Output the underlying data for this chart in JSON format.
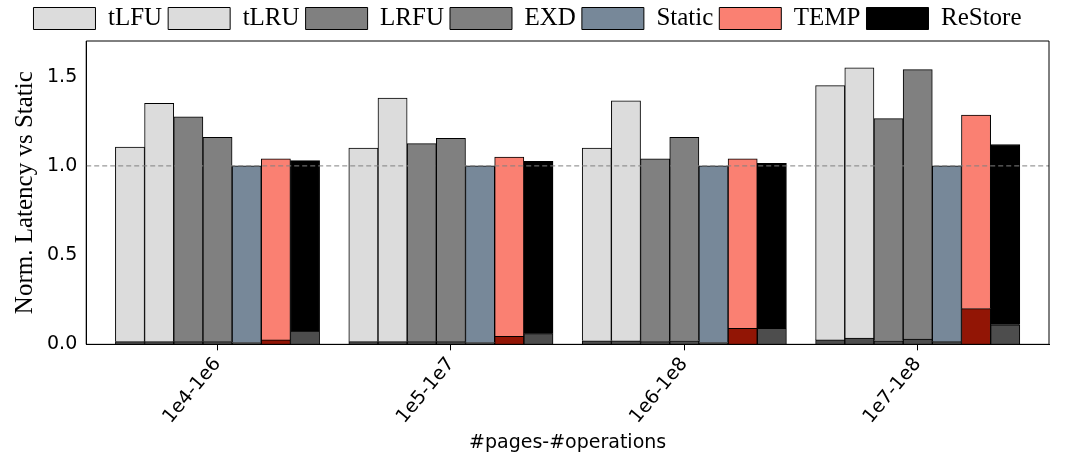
{
  "chart_data": {
    "type": "bar",
    "stacked": true,
    "xlabel": "#pages-#operations",
    "ylabel": "Norm. Latency vs Static",
    "categories": [
      null,
      null,
      null,
      null,
      "1e4-1e6",
      null,
      null,
      null,
      null,
      null,
      null,
      null,
      "1e5-1e7",
      null,
      null,
      null,
      null,
      null,
      null,
      null,
      "1e6-1e8",
      null,
      null,
      null,
      null,
      null,
      null,
      null,
      "1e7-1e8",
      null,
      null,
      null,
      null
    ],
    "ylim": [
      0,
      1.7
    ],
    "yticks": [
      {
        "value": 0,
        "label": "0.0"
      },
      {
        "value": 0.5,
        "label": "0.5"
      },
      {
        "value": 1.0,
        "label": "1.0"
      },
      {
        "value": 1.5,
        "label": "1.5"
      }
    ],
    "grid": false,
    "legend": "top",
    "ref_lines": [
      {
        "axis": "y",
        "value": 1.0,
        "color": "#808080",
        "line_style": "dashed"
      }
    ],
    "series": [
      {
        "color": "#4d4d4d",
        "values": [
          null,
          0.015,
          null,
          null,
          null,
          null,
          null,
          null,
          null,
          0.015,
          null,
          null,
          null,
          null,
          null,
          null,
          null,
          0.02,
          null,
          null,
          null,
          null,
          null,
          null,
          null,
          0.025,
          null,
          null,
          null,
          null,
          null,
          null,
          null
        ]
      },
      {
        "name": "tLFU",
        "color": "#dcdcdc",
        "values": [
          null,
          1.09,
          null,
          null,
          null,
          null,
          null,
          null,
          null,
          1.085,
          null,
          null,
          null,
          null,
          null,
          null,
          null,
          1.08,
          null,
          null,
          null,
          null,
          null,
          null,
          null,
          1.425,
          null,
          null,
          null,
          null,
          null,
          null,
          null
        ]
      },
      {
        "color": "#4d4d4d",
        "values": [
          null,
          null,
          0.015,
          null,
          null,
          null,
          null,
          null,
          null,
          null,
          0.015,
          null,
          null,
          null,
          null,
          null,
          null,
          null,
          0.02,
          null,
          null,
          null,
          null,
          null,
          null,
          null,
          0.035,
          null,
          null,
          null,
          null,
          null,
          null
        ]
      },
      {
        "name": "tLRU",
        "color": "#dcdcdc",
        "values": [
          null,
          null,
          1.335,
          null,
          null,
          null,
          null,
          null,
          null,
          null,
          1.365,
          null,
          null,
          null,
          null,
          null,
          null,
          null,
          1.345,
          null,
          null,
          null,
          null,
          null,
          null,
          null,
          1.515,
          null,
          null,
          null,
          null,
          null,
          null
        ]
      },
      {
        "color": "#4d4d4d",
        "values": [
          null,
          null,
          null,
          0.015,
          null,
          null,
          null,
          null,
          null,
          null,
          null,
          0.015,
          null,
          null,
          null,
          null,
          null,
          null,
          null,
          0.015,
          null,
          null,
          null,
          null,
          null,
          null,
          null,
          0.02,
          null,
          null,
          null,
          null,
          null
        ]
      },
      {
        "name": "LRFU",
        "color": "#808080",
        "values": [
          null,
          null,
          null,
          1.26,
          null,
          null,
          null,
          null,
          null,
          null,
          null,
          1.11,
          null,
          null,
          null,
          null,
          null,
          null,
          null,
          1.025,
          null,
          null,
          null,
          null,
          null,
          null,
          null,
          1.245,
          null,
          null,
          null,
          null,
          null
        ]
      },
      {
        "color": "#4d4d4d",
        "values": [
          null,
          null,
          null,
          null,
          0.015,
          null,
          null,
          null,
          null,
          null,
          null,
          null,
          0.015,
          null,
          null,
          null,
          null,
          null,
          null,
          null,
          0.02,
          null,
          null,
          null,
          null,
          null,
          null,
          null,
          0.03,
          null,
          null,
          null,
          null
        ]
      },
      {
        "name": "EXD",
        "color": "#808080",
        "values": [
          null,
          null,
          null,
          null,
          1.145,
          null,
          null,
          null,
          null,
          null,
          null,
          null,
          1.14,
          null,
          null,
          null,
          null,
          null,
          null,
          null,
          1.14,
          null,
          null,
          null,
          null,
          null,
          null,
          null,
          1.51,
          null,
          null,
          null,
          null
        ]
      },
      {
        "color": "#4d4d4d",
        "values": [
          null,
          null,
          null,
          null,
          null,
          0.01,
          null,
          null,
          null,
          null,
          null,
          null,
          null,
          0.01,
          null,
          null,
          null,
          null,
          null,
          null,
          null,
          0.01,
          null,
          null,
          null,
          null,
          null,
          null,
          null,
          0.015,
          null,
          null,
          null
        ]
      },
      {
        "name": "Static",
        "color": "#778899",
        "values": [
          null,
          null,
          null,
          null,
          null,
          0.99,
          null,
          null,
          null,
          null,
          null,
          null,
          null,
          0.99,
          null,
          null,
          null,
          null,
          null,
          null,
          null,
          0.99,
          null,
          null,
          null,
          null,
          null,
          null,
          null,
          0.985,
          null,
          null,
          null
        ]
      },
      {
        "color": "#921505",
        "values": [
          null,
          null,
          null,
          null,
          null,
          null,
          0.025,
          null,
          null,
          null,
          null,
          null,
          null,
          null,
          0.045,
          null,
          null,
          null,
          null,
          null,
          null,
          null,
          0.09,
          null,
          null,
          null,
          null,
          null,
          null,
          null,
          0.2,
          null,
          null
        ]
      },
      {
        "name": "TEMP",
        "color": "#fa8072",
        "values": [
          null,
          null,
          null,
          null,
          null,
          null,
          1.015,
          null,
          null,
          null,
          null,
          null,
          null,
          null,
          1.005,
          null,
          null,
          null,
          null,
          null,
          null,
          null,
          0.95,
          null,
          null,
          null,
          null,
          null,
          null,
          null,
          1.085,
          null,
          null
        ]
      },
      {
        "color": "#4d4d4d",
        "values": [
          null,
          null,
          null,
          null,
          null,
          null,
          null,
          0.075,
          null,
          null,
          null,
          null,
          null,
          null,
          null,
          0.06,
          null,
          null,
          null,
          null,
          null,
          null,
          null,
          0.09,
          null,
          null,
          null,
          null,
          null,
          null,
          null,
          0.11,
          null
        ]
      },
      {
        "name": "ReStore",
        "color": "#000000",
        "values": [
          null,
          null,
          null,
          null,
          null,
          null,
          null,
          0.955,
          null,
          null,
          null,
          null,
          null,
          null,
          null,
          0.965,
          null,
          null,
          null,
          null,
          null,
          null,
          null,
          0.925,
          null,
          null,
          null,
          null,
          null,
          null,
          null,
          1.01,
          null
        ]
      }
    ]
  }
}
